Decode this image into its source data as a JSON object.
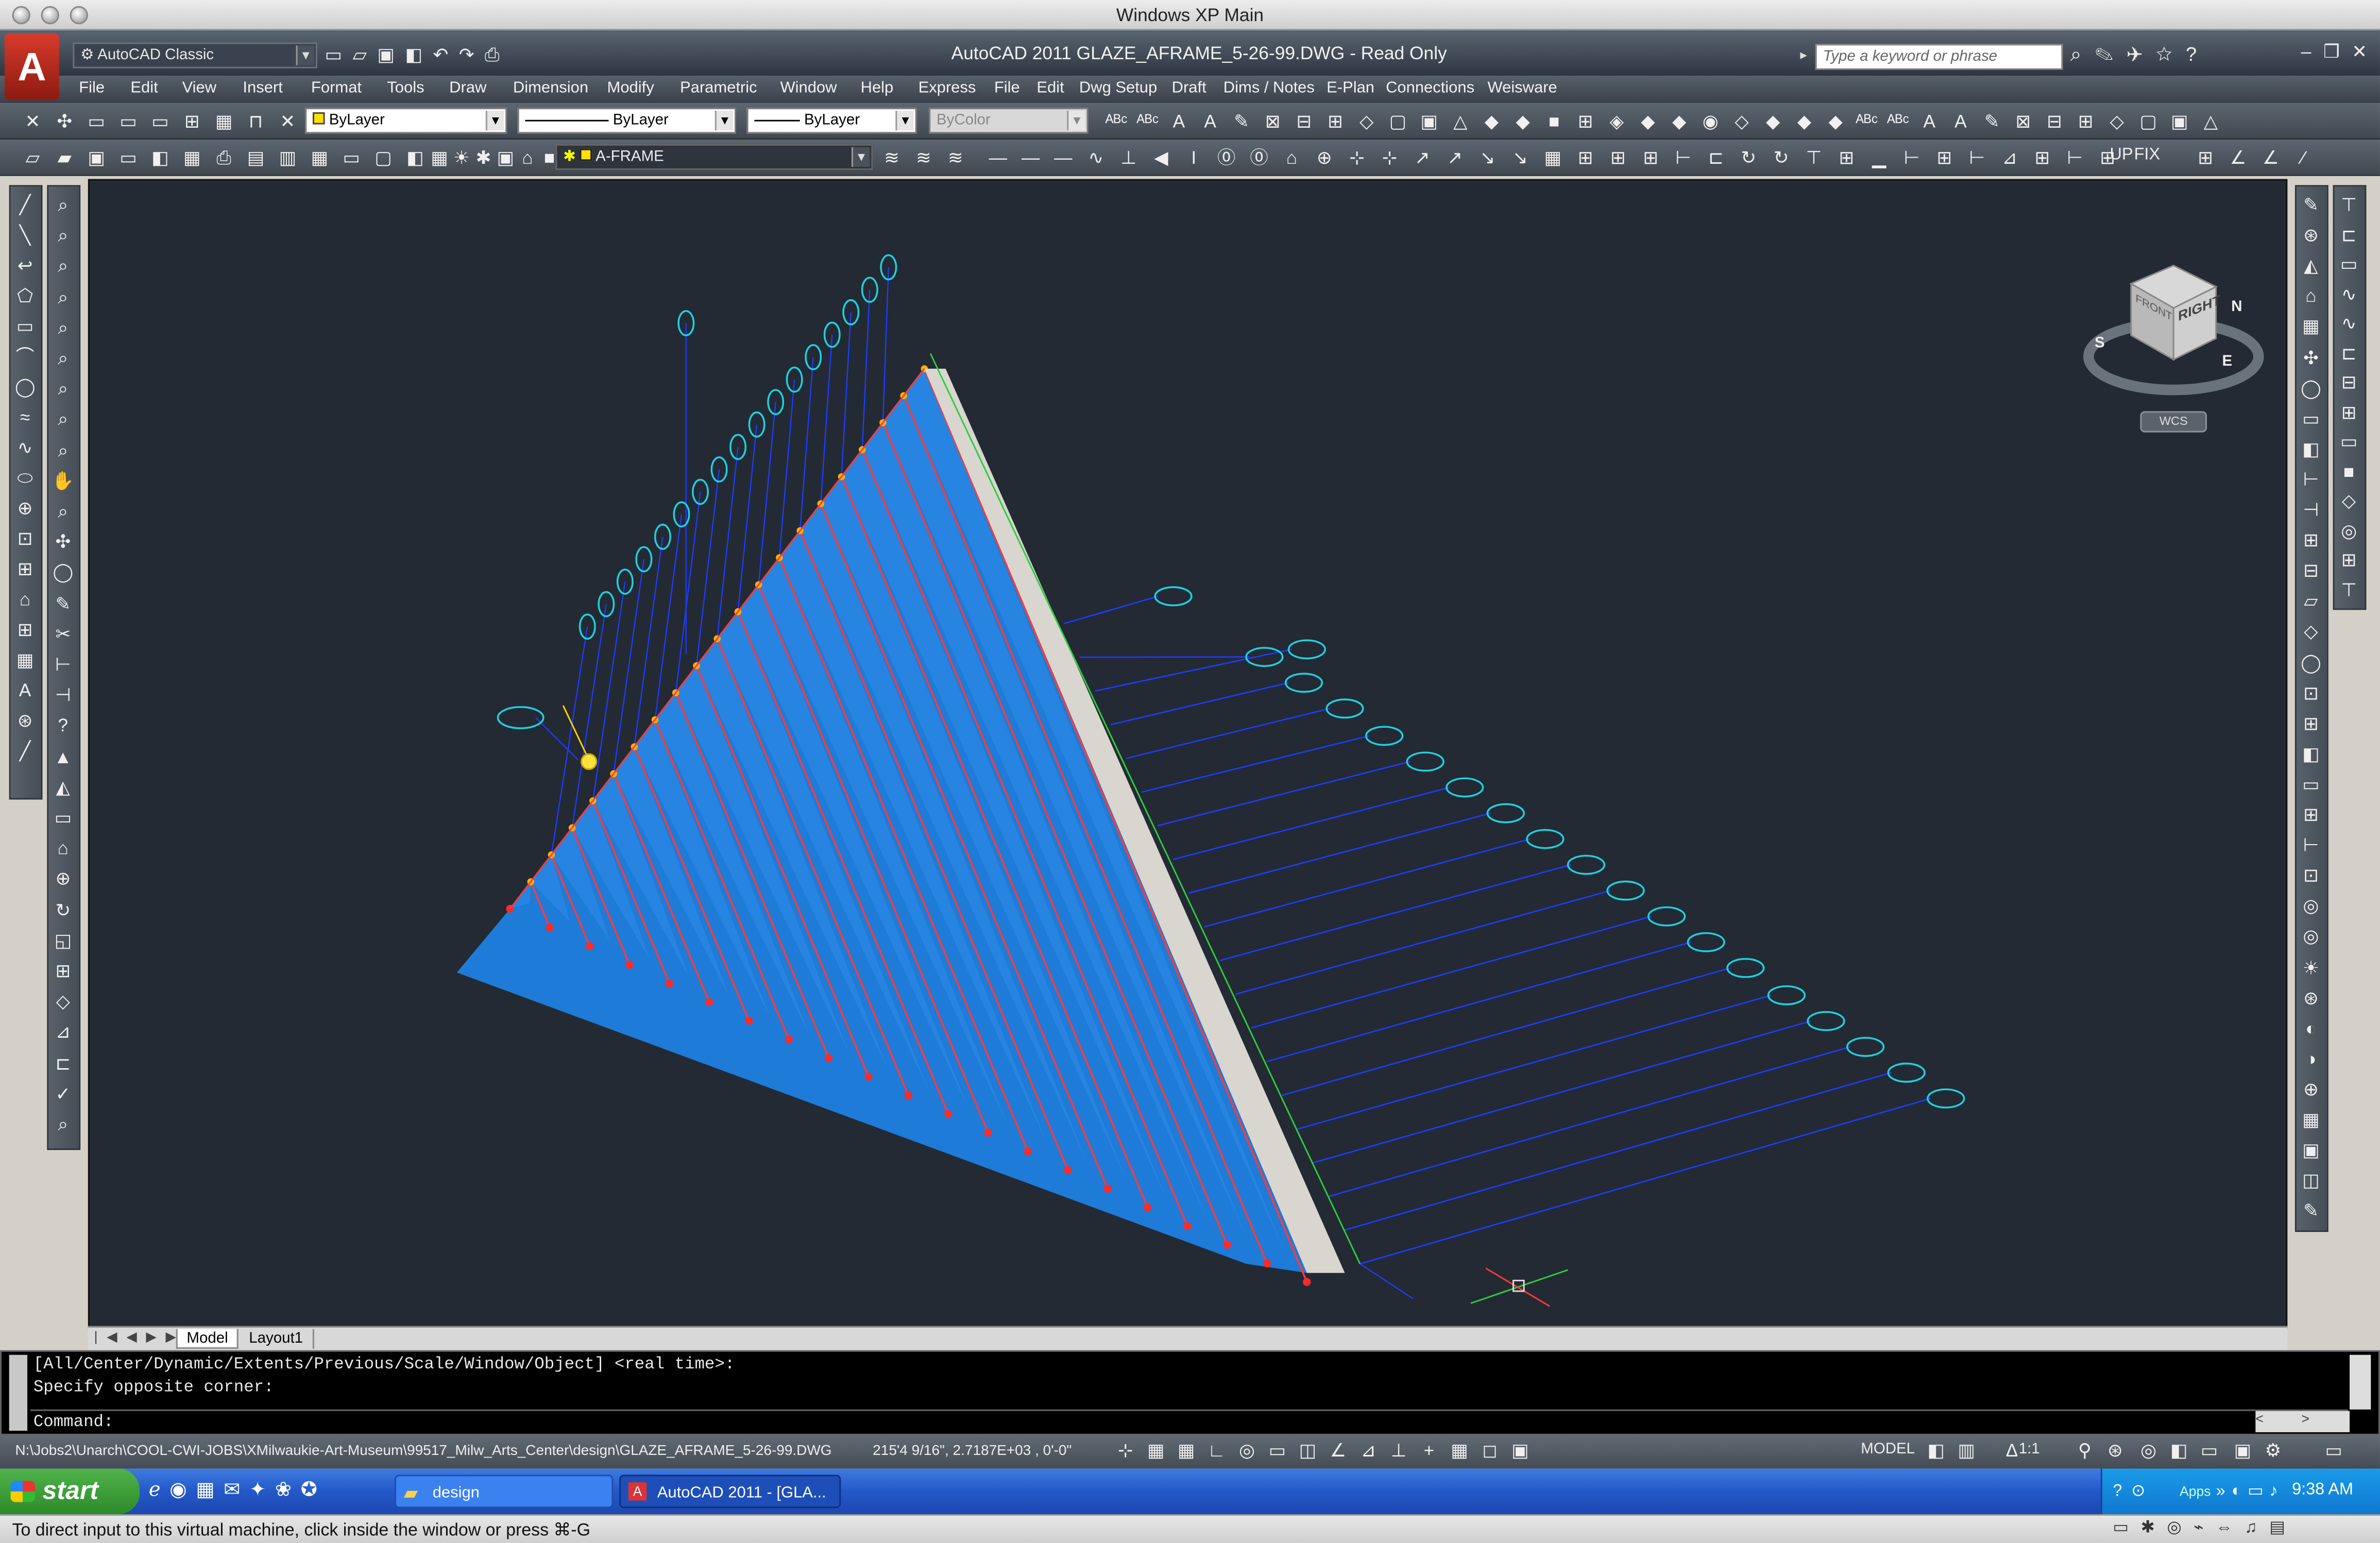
{
  "mac_window_title": "Windows XP Main",
  "app": {
    "title": "AutoCAD 2011    GLAZE_AFRAME_5-26-99.DWG - Read Only",
    "workspace": "AutoCAD Classic",
    "search_placeholder": "Type a keyword or phrase",
    "logo": "A"
  },
  "menu": [
    "File",
    "Edit",
    "View",
    "Insert",
    "Format",
    "Tools",
    "Draw",
    "Dimension",
    "Modify",
    "Parametric",
    "Window",
    "Help",
    "Express",
    "File",
    "Edit",
    "Dwg Setup",
    "Draft",
    "Dims / Notes",
    "E-Plan",
    "Connections",
    "Weisware"
  ],
  "properties": {
    "color": "ByLayer",
    "linetype": "ByLayer",
    "lineweight": "ByLayer",
    "plotstyle": "ByColor",
    "layer": "A-FRAME"
  },
  "toolbar_extra_labels": [
    "UP",
    "FIX"
  ],
  "viewcube": {
    "face": "RIGHT",
    "front": "FRONT",
    "compass": [
      "S",
      "E",
      "N"
    ],
    "ucs": "WCS"
  },
  "layout_tabs": [
    "Model",
    "Layout1"
  ],
  "command": {
    "line1": "[All/Center/Dynamic/Extents/Previous/Scale/Window/Object] <real time>:",
    "line2": "Specify opposite corner:",
    "line3": "Command:"
  },
  "status": {
    "path": "N:\\Jobs2\\Unarch\\COOL-CWI-JOBS\\XMilwaukie-Art-Museum\\99517_Milw_Arts_Center\\design\\GLAZE_AFRAME_5-26-99.DWG",
    "coords": "215'4 9/16\", 2.7187E+03 , 0'-0\"",
    "model": "MODEL",
    "scale": "1:1"
  },
  "taskbar": {
    "start": "start",
    "tasks": [
      "design",
      "AutoCAD 2011 - [GLA..."
    ],
    "tray_apps": "Apps",
    "clock": "9:38 AM"
  },
  "vm_message": "To direct input to this virtual machine, click inside the window or press ⌘-G",
  "colors": {
    "viewport_bg": "#232a33",
    "glass": "#1f7fe0",
    "mullion": "#ff3a3a",
    "tag": "#20d0e0",
    "leader": "#1e3cff"
  }
}
